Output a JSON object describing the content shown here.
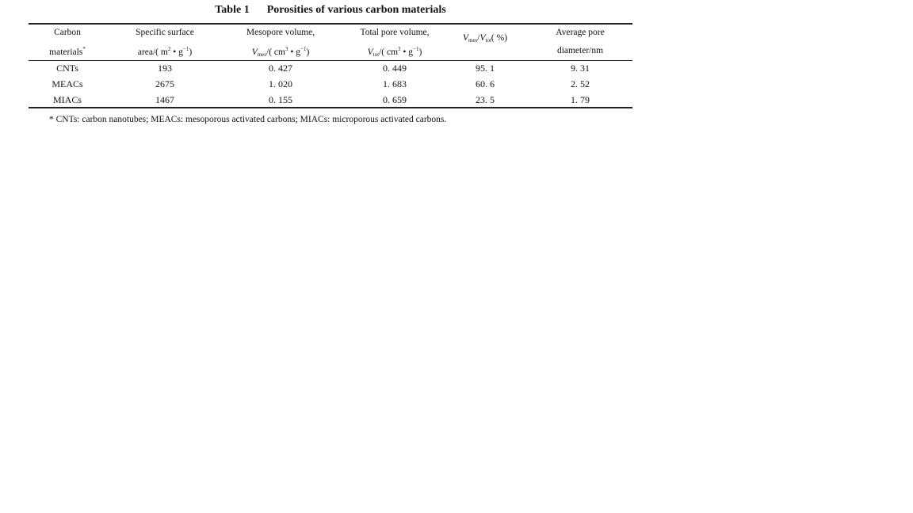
{
  "table": {
    "label": "Table 1",
    "title": "Porosities of various carbon materials",
    "headers": [
      {
        "line1": [
          {
            "t": "Carbon"
          }
        ],
        "line2": [
          {
            "t": "materials"
          },
          {
            "sup": "*"
          }
        ]
      },
      {
        "line1": [
          {
            "t": "Specific surface"
          }
        ],
        "line2": [
          {
            "t": "area/( m"
          },
          {
            "sup": "2"
          },
          {
            "t": " • g"
          },
          {
            "sup": "−1"
          },
          {
            "t": ")"
          }
        ]
      },
      {
        "line1": [
          {
            "t": "Mesopore volume,"
          }
        ],
        "line2": [
          {
            "i": "V"
          },
          {
            "sub": "mes"
          },
          {
            "t": "/( cm"
          },
          {
            "sup": "3"
          },
          {
            "t": " • g"
          },
          {
            "sup": "−1"
          },
          {
            "t": ")"
          }
        ]
      },
      {
        "line1": [
          {
            "t": "Total pore volume,"
          }
        ],
        "line2": [
          {
            "i": "V"
          },
          {
            "sub": "tot"
          },
          {
            "t": "/( cm"
          },
          {
            "sup": "3"
          },
          {
            "t": " • g"
          },
          {
            "sup": "−1"
          },
          {
            "t": ")"
          }
        ]
      },
      {
        "line1": [
          {
            "i": "V"
          },
          {
            "sub": "mes"
          },
          {
            "t": "/"
          },
          {
            "i": "V"
          },
          {
            "sub": "tot"
          },
          {
            "t": "( %)"
          }
        ],
        "line2": []
      },
      {
        "line1": [
          {
            "t": "Average pore"
          }
        ],
        "line2": [
          {
            "t": "diameter/nm"
          }
        ]
      }
    ],
    "rows": [
      [
        "CNTs",
        "193",
        "0. 427",
        "0. 449",
        "95. 1",
        "9. 31"
      ],
      [
        "MEACs",
        "2675",
        "1. 020",
        "1. 683",
        "60. 6",
        "2. 52"
      ],
      [
        "MIACs",
        "1467",
        "0. 155",
        "0. 659",
        "23. 5",
        "1. 79"
      ]
    ],
    "footnote": "* CNTs: carbon nanotubes; MEACs: mesoporous activated carbons; MIACs: microporous activated carbons."
  }
}
